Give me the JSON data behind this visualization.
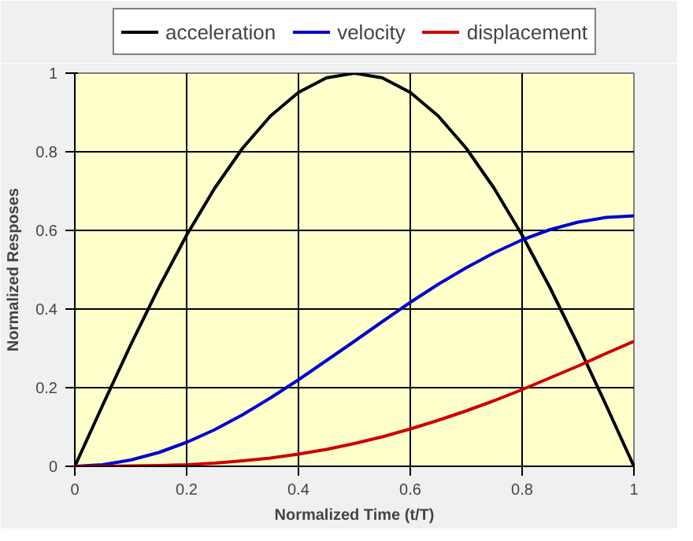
{
  "chart_data": {
    "type": "line",
    "xlabel": "Normalized Time (t/T)",
    "ylabel": "Normalized Resposes",
    "x": [
      0,
      0.05,
      0.1,
      0.15,
      0.2,
      0.25,
      0.3,
      0.35,
      0.4,
      0.45,
      0.5,
      0.55,
      0.6,
      0.65,
      0.7,
      0.75,
      0.8,
      0.85,
      0.9,
      0.95,
      1
    ],
    "series": [
      {
        "name": "acceleration",
        "color": "#000000",
        "values": [
          0,
          0.156,
          0.309,
          0.454,
          0.588,
          0.707,
          0.809,
          0.891,
          0.951,
          0.988,
          1,
          0.988,
          0.951,
          0.891,
          0.809,
          0.707,
          0.588,
          0.454,
          0.309,
          0.156,
          0
        ]
      },
      {
        "name": "velocity",
        "color": "#0000cc",
        "values": [
          0,
          0.004,
          0.016,
          0.035,
          0.061,
          0.093,
          0.131,
          0.174,
          0.22,
          0.269,
          0.318,
          0.368,
          0.417,
          0.463,
          0.505,
          0.543,
          0.576,
          0.602,
          0.621,
          0.633,
          0.637
        ]
      },
      {
        "name": "displacement",
        "color": "#cc0000",
        "values": [
          0,
          0,
          0.001,
          0.002,
          0.004,
          0.008,
          0.014,
          0.021,
          0.031,
          0.043,
          0.058,
          0.075,
          0.095,
          0.117,
          0.141,
          0.167,
          0.195,
          0.225,
          0.255,
          0.287,
          0.318
        ]
      }
    ],
    "xlim": [
      0,
      1
    ],
    "ylim": [
      0,
      1
    ],
    "xticks": [
      0,
      0.2,
      0.4,
      0.6,
      0.8,
      1
    ],
    "yticks": [
      0,
      0.2,
      0.4,
      0.6,
      0.8,
      1
    ],
    "grid": true,
    "legend": "top",
    "line_style": "solid"
  }
}
